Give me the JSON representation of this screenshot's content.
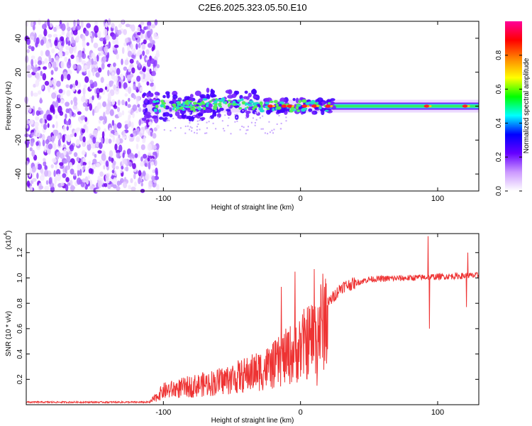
{
  "title": "C2E6.2025.323.05.50.E10",
  "chart_data": [
    {
      "type": "heatmap",
      "name": "spectrogram",
      "xlabel": "Height of straight line (km)",
      "ylabel": "Frequency (Hz)",
      "xlim": [
        -200,
        130
      ],
      "ylim": [
        -50,
        50
      ],
      "xticks": [
        -100,
        0,
        100
      ],
      "yticks": [
        -40,
        -20,
        0,
        20,
        40
      ],
      "noise_region_x": [
        -200,
        -107
      ],
      "signal_band_center_hz": 0,
      "hot_spot_heights_km": [
        -22,
        -12,
        -8,
        3,
        10,
        20,
        92,
        120
      ],
      "colorbar": {
        "label": "Normalized spectral amplitude",
        "range": [
          0.0,
          1.0
        ],
        "ticks": [
          0.0,
          0.2,
          0.4,
          0.6,
          0.8
        ],
        "tick_labels": [
          "0.0",
          "0.2",
          "0.4",
          "0.6",
          "0.8"
        ],
        "colors": [
          "#ffffff",
          "#cc99ff",
          "#6600ff",
          "#0000ff",
          "#00ffff",
          "#00ff00",
          "#ffff00",
          "#ff8800",
          "#ff0000",
          "#ff0099"
        ]
      }
    },
    {
      "type": "line",
      "name": "snr",
      "xlabel": "Height of straight line (km)",
      "ylabel": "SNR (10 * v/v)",
      "y_scale_label": "(x10",
      "y_scale_exp": "4",
      "xlim": [
        -200,
        130
      ],
      "ylim": [
        0,
        1.35
      ],
      "xticks": [
        -100,
        0,
        100
      ],
      "yticks": [
        0.2,
        0.4,
        0.6,
        0.8,
        1.0,
        1.2
      ],
      "color": "#ee3333",
      "trend": {
        "x": [
          -200,
          -110,
          -100,
          -80,
          -60,
          -40,
          -20,
          -10,
          0,
          10,
          20,
          30,
          50,
          80,
          100,
          130
        ],
        "y": [
          0.02,
          0.02,
          0.12,
          0.16,
          0.2,
          0.26,
          0.34,
          0.42,
          0.5,
          0.6,
          0.8,
          0.93,
          0.99,
          1.0,
          1.01,
          1.02
        ]
      },
      "spikes": [
        {
          "x": 10,
          "y": 1.07
        },
        {
          "x": -4,
          "y": 1.05
        },
        {
          "x": -14,
          "y": 0.93
        },
        {
          "x": 12,
          "y": 0.15
        },
        {
          "x": 93,
          "y": 1.33
        },
        {
          "x": 94,
          "y": 0.6
        },
        {
          "x": 121,
          "y": 0.77
        },
        {
          "x": 122,
          "y": 1.2
        }
      ]
    }
  ]
}
